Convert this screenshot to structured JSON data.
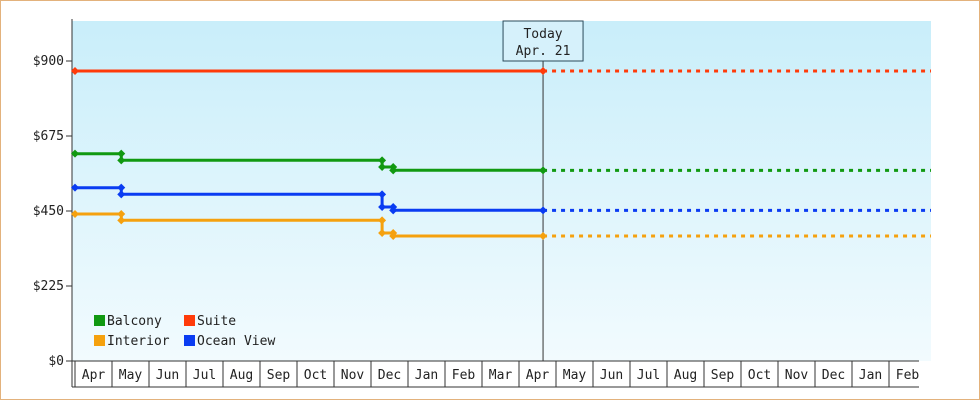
{
  "chart_data": {
    "type": "line",
    "line_style": "step",
    "title": "",
    "xlabel": "",
    "ylabel": "",
    "ylim": [
      0,
      1020
    ],
    "y_ticks": [
      0,
      225,
      450,
      675,
      900
    ],
    "y_tick_labels": [
      "$0",
      "$225",
      "$450",
      "$675",
      "$900"
    ],
    "x_months": [
      "Apr",
      "May",
      "Jun",
      "Jul",
      "Aug",
      "Sep",
      "Oct",
      "Nov",
      "Dec",
      "Jan",
      "Feb",
      "Mar",
      "Apr",
      "May",
      "Jun",
      "Jul",
      "Aug",
      "Sep",
      "Oct",
      "Nov",
      "Dec",
      "Jan",
      "Feb"
    ],
    "today": {
      "title": "Today",
      "date": "Apr. 21",
      "month_index": 12.65
    },
    "projection": "dotted to end of axis",
    "grid": false,
    "legend_position": "bottom-left",
    "background": {
      "top": "#c9eefa",
      "bottom": "#f2fbfe"
    },
    "series": [
      {
        "name": "Balcony",
        "color": "#119911",
        "points": [
          [
            0,
            622
          ],
          [
            1.25,
            622
          ],
          [
            1.25,
            602
          ],
          [
            8.3,
            602
          ],
          [
            8.3,
            582
          ],
          [
            8.6,
            582
          ],
          [
            8.6,
            572
          ],
          [
            12.65,
            572
          ]
        ]
      },
      {
        "name": "Suite",
        "color": "#ff3b0a",
        "points": [
          [
            0,
            870
          ],
          [
            12.65,
            870
          ]
        ]
      },
      {
        "name": "Interior",
        "color": "#f5a10e",
        "points": [
          [
            0,
            441
          ],
          [
            1.25,
            441
          ],
          [
            1.25,
            422
          ],
          [
            8.3,
            422
          ],
          [
            8.3,
            384
          ],
          [
            8.6,
            384
          ],
          [
            8.6,
            375
          ],
          [
            12.65,
            375
          ]
        ]
      },
      {
        "name": "Ocean View",
        "color": "#0a3cf2",
        "points": [
          [
            0,
            520
          ],
          [
            1.25,
            520
          ],
          [
            1.25,
            500
          ],
          [
            8.3,
            500
          ],
          [
            8.3,
            462
          ],
          [
            8.6,
            462
          ],
          [
            8.6,
            452
          ],
          [
            12.65,
            452
          ]
        ]
      }
    ],
    "legend_order": [
      "Balcony",
      "Suite",
      "Interior",
      "Ocean View"
    ]
  }
}
